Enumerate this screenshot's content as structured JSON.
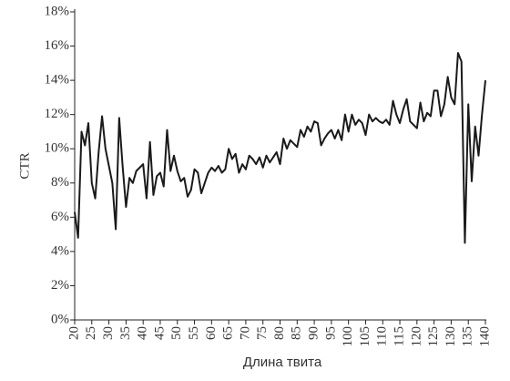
{
  "chart_data": {
    "type": "line",
    "xlabel": "Длина твита",
    "ylabel": "CTR",
    "x": [
      20,
      21,
      22,
      23,
      24,
      25,
      26,
      27,
      28,
      29,
      30,
      31,
      32,
      33,
      34,
      35,
      36,
      37,
      38,
      39,
      40,
      41,
      42,
      43,
      44,
      45,
      46,
      47,
      48,
      49,
      50,
      51,
      52,
      53,
      54,
      55,
      56,
      57,
      58,
      59,
      60,
      61,
      62,
      63,
      64,
      65,
      66,
      67,
      68,
      69,
      70,
      71,
      72,
      73,
      74,
      75,
      76,
      77,
      78,
      79,
      80,
      81,
      82,
      83,
      84,
      85,
      86,
      87,
      88,
      89,
      90,
      91,
      92,
      93,
      94,
      95,
      96,
      97,
      98,
      99,
      100,
      101,
      102,
      103,
      104,
      105,
      106,
      107,
      108,
      109,
      110,
      111,
      112,
      113,
      114,
      115,
      116,
      117,
      118,
      119,
      120,
      121,
      122,
      123,
      124,
      125,
      126,
      127,
      128,
      129,
      130,
      131,
      132,
      133,
      134,
      135,
      136,
      137,
      138,
      139,
      140
    ],
    "values": [
      6.3,
      4.8,
      11.0,
      10.2,
      11.5,
      8.0,
      7.1,
      9.8,
      11.9,
      10.0,
      9.0,
      8.0,
      5.3,
      11.8,
      9.0,
      6.6,
      8.3,
      8.0,
      8.7,
      8.9,
      9.1,
      7.1,
      10.4,
      7.3,
      8.4,
      8.6,
      7.8,
      11.1,
      8.7,
      9.6,
      8.7,
      8.1,
      8.3,
      7.2,
      7.6,
      8.8,
      8.6,
      7.4,
      8.0,
      8.6,
      8.9,
      8.7,
      9.0,
      8.6,
      8.8,
      10.0,
      9.4,
      9.7,
      8.6,
      9.1,
      8.8,
      9.6,
      9.4,
      9.1,
      9.5,
      8.9,
      9.6,
      9.2,
      9.5,
      9.8,
      9.1,
      10.6,
      10.0,
      10.5,
      10.3,
      10.1,
      11.1,
      10.7,
      11.3,
      11.0,
      11.6,
      11.5,
      10.2,
      10.6,
      10.9,
      11.1,
      10.6,
      11.1,
      10.5,
      12.0,
      11.0,
      12.0,
      11.4,
      11.7,
      11.5,
      10.8,
      12.0,
      11.6,
      11.8,
      11.6,
      11.5,
      11.7,
      11.4,
      12.8,
      12.0,
      11.5,
      12.3,
      12.9,
      11.6,
      11.4,
      11.2,
      12.7,
      11.6,
      12.1,
      11.9,
      13.4,
      13.4,
      11.9,
      12.6,
      14.2,
      13.0,
      12.6,
      15.6,
      15.1,
      4.5,
      12.6,
      8.1,
      11.3,
      9.6,
      12.0,
      14.0
    ],
    "color": "#1a1a1a",
    "xlim": [
      20,
      140
    ],
    "xticks": [
      20,
      25,
      30,
      35,
      40,
      45,
      50,
      55,
      60,
      65,
      70,
      75,
      80,
      85,
      90,
      95,
      100,
      105,
      110,
      115,
      120,
      125,
      130,
      135,
      140
    ],
    "ylim": [
      0,
      18
    ],
    "yticks": [
      {
        "value": 0,
        "label": "0%"
      },
      {
        "value": 2,
        "label": "2%"
      },
      {
        "value": 4,
        "label": "4%"
      },
      {
        "value": 6,
        "label": "6%"
      },
      {
        "value": 8,
        "label": "8%"
      },
      {
        "value": 10,
        "label": "10%"
      },
      {
        "value": 12,
        "label": "12%"
      },
      {
        "value": 14,
        "label": "14%"
      },
      {
        "value": 16,
        "label": "16%"
      },
      {
        "value": 18,
        "label": "18%"
      }
    ]
  }
}
